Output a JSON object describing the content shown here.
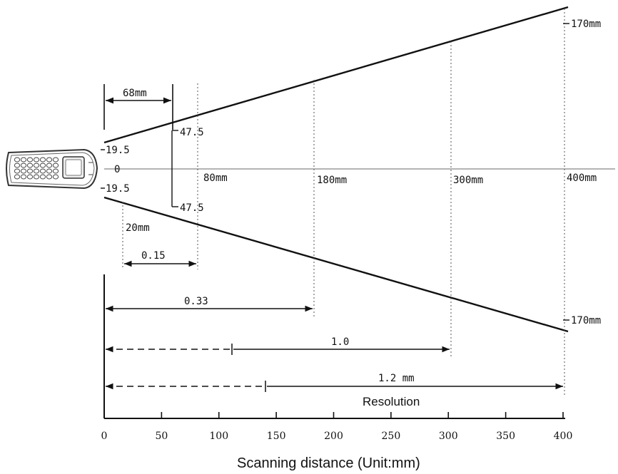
{
  "field_labels": {
    "offset_68": "68mm",
    "top_47": "47.5",
    "top_19": "19.5",
    "zero": "0",
    "bottom_19": "19.5",
    "bottom_47": "47.5",
    "d20": "20mm",
    "d80": "80mm",
    "d180": "180mm",
    "d300": "300mm",
    "d400": "400mm",
    "top_170": "170mm",
    "bottom_170": "170mm"
  },
  "resolution_ranges": [
    {
      "label": "0.15"
    },
    {
      "label": "0.33"
    },
    {
      "label": "1.0"
    },
    {
      "label": "1.2 mm"
    }
  ],
  "resolution_title": "Resolution",
  "x_axis": {
    "title": "Scanning distance (Unit:mm)",
    "ticks": [
      "0",
      "50",
      "100",
      "150",
      "200",
      "250",
      "300",
      "350",
      "400"
    ]
  }
}
